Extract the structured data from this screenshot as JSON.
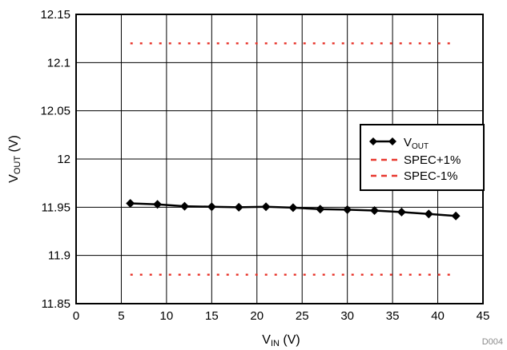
{
  "chart_data": {
    "type": "line",
    "xlabel": {
      "main": "V",
      "sub": "IN",
      "unit": " (V)"
    },
    "ylabel": {
      "main": "V",
      "sub": "OUT",
      "unit": " (V)"
    },
    "xlim": [
      0,
      45
    ],
    "ylim": [
      11.85,
      12.15
    ],
    "x_ticks": [
      0,
      5,
      10,
      15,
      20,
      25,
      30,
      35,
      40,
      45
    ],
    "y_ticks": [
      11.85,
      11.9,
      11.95,
      12,
      12.05,
      12.1,
      12.15
    ],
    "x_tick_labels": [
      "0",
      "5",
      "10",
      "15",
      "20",
      "25",
      "30",
      "35",
      "40",
      "45"
    ],
    "y_tick_labels": [
      "11.85",
      "11.9",
      "11.95",
      "12",
      "12.05",
      "12.1",
      "12.15"
    ],
    "grid": true,
    "legend_position": "right-middle",
    "series": [
      {
        "name": {
          "main": "V",
          "sub": "OUT"
        },
        "color": "#000000",
        "marker": "diamond",
        "x": [
          6,
          9,
          12,
          15,
          18,
          21,
          24,
          27,
          30,
          33,
          36,
          39,
          42
        ],
        "y": [
          11.954,
          11.953,
          11.951,
          11.9505,
          11.95,
          11.9505,
          11.9495,
          11.948,
          11.9475,
          11.9465,
          11.945,
          11.943,
          11.941
        ]
      },
      {
        "name": {
          "main": "SPEC+1%"
        },
        "color": "#e8382f",
        "style": "dotted",
        "x": [
          6,
          42
        ],
        "y": [
          12.12,
          12.12
        ]
      },
      {
        "name": {
          "main": "SPEC-1%"
        },
        "color": "#e8382f",
        "style": "dotted",
        "x": [
          6,
          42
        ],
        "y": [
          11.88,
          11.88
        ]
      }
    ],
    "annotation": "D004"
  }
}
